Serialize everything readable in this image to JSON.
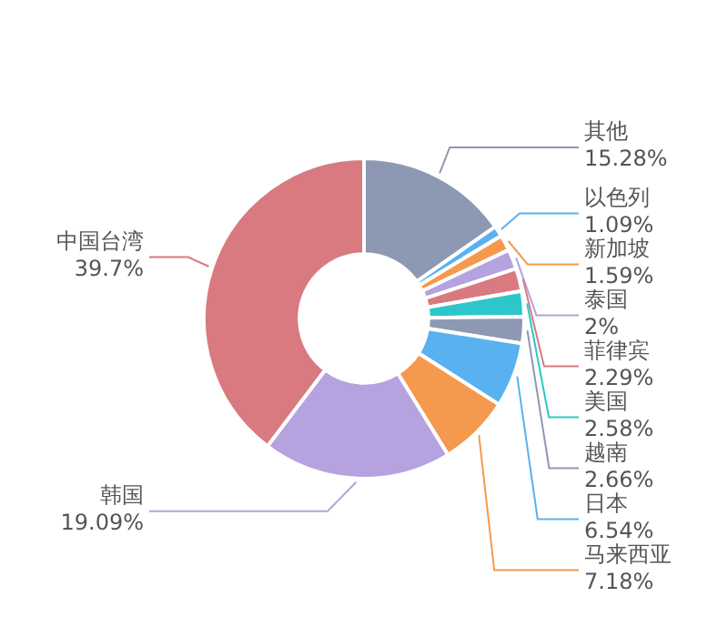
{
  "chart_data": {
    "type": "donut",
    "categories": [
      "其他",
      "以色列",
      "新加坡",
      "泰国",
      "菲律宾",
      "美国",
      "越南",
      "日本",
      "马来西亚",
      "韩国",
      "中国台湾"
    ],
    "values": [
      15.28,
      1.09,
      1.59,
      2,
      2.29,
      2.58,
      2.66,
      6.54,
      7.18,
      19.09,
      39.7
    ],
    "value_labels": [
      "15.28%",
      "1.09%",
      "1.59%",
      "2%",
      "2.29%",
      "2.58%",
      "2.66%",
      "6.54%",
      "7.18%",
      "19.09%",
      "39.7%"
    ],
    "colors": [
      "#8d98b3",
      "#5ab1ef",
      "#f5994e",
      "#b6a2de",
      "#d87a80",
      "#2ec7c9",
      "#8d98b3",
      "#5ab1ef",
      "#f5994e",
      "#b6a2de",
      "#d87a80"
    ],
    "legend": false
  }
}
